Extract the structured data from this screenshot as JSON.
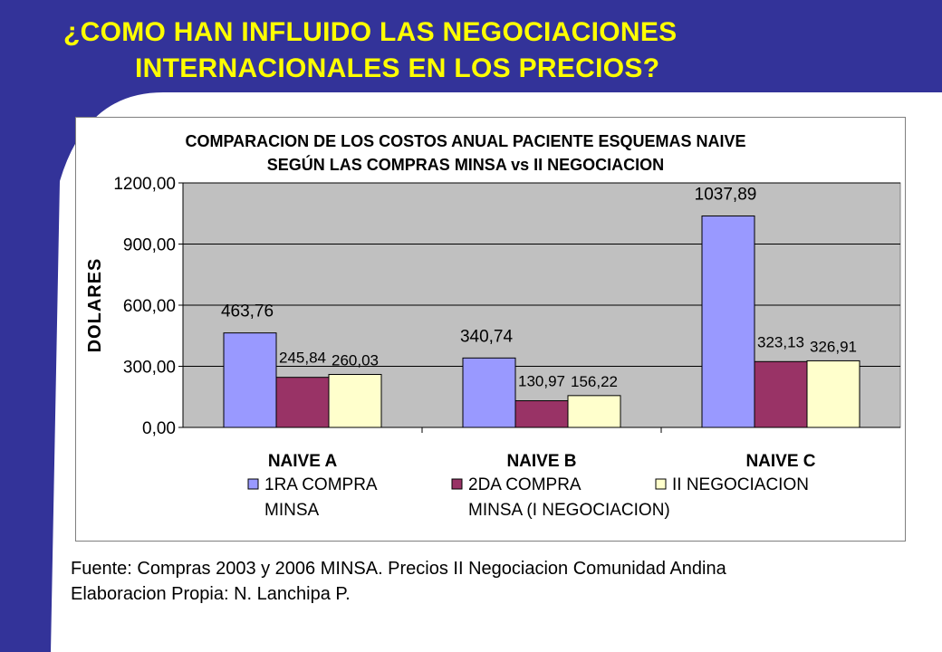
{
  "slide": {
    "title_line1": "¿COMO HAN INFLUIDO LAS NEGOCIACIONES",
    "title_line2": "INTERNACIONALES EN LOS PRECIOS?",
    "colors": {
      "background": "#ffffff",
      "sidebar": "#333399",
      "title": "#ffff00"
    }
  },
  "chart_data": {
    "type": "bar",
    "title_lines": [
      "COMPARACION DE LOS COSTOS ANUAL PACIENTE ESQUEMAS NAIVE",
      "SEGÚN LAS COMPRAS MINSA vs II NEGOCIACION"
    ],
    "ylabel": "DOLARES",
    "xlabel": "",
    "ylim": [
      0,
      1200
    ],
    "yticks": [
      "0,00",
      "300,00",
      "600,00",
      "900,00",
      "1200,00"
    ],
    "ytick_values": [
      0,
      300,
      600,
      900,
      1200
    ],
    "categories": [
      "NAIVE A",
      "NAIVE B",
      "NAIVE C"
    ],
    "series": [
      {
        "name_lines": [
          "1RA COMPRA",
          "MINSA"
        ],
        "color": "#9999ff",
        "values": [
          463.76,
          340.74,
          1037.89
        ],
        "labels": [
          "463,76",
          "340,74",
          "1037,89"
        ]
      },
      {
        "name_lines": [
          "2DA COMPRA",
          "MINSA (I NEGOCIACION)"
        ],
        "color": "#993366",
        "values": [
          245.84,
          130.97,
          323.13
        ],
        "labels": [
          "245,84",
          "130,97",
          "323,13"
        ]
      },
      {
        "name_lines": [
          "II NEGOCIACION",
          ""
        ],
        "color": "#ffffcc",
        "values": [
          260.03,
          156.22,
          326.91
        ],
        "labels": [
          "260,03",
          "156,22",
          "326,91"
        ]
      }
    ],
    "grid": true,
    "plot_background": "#c0c0c0",
    "legend_position": "bottom"
  },
  "footer": {
    "source": "Fuente: Compras 2003 y 2006 MINSA. Precios II Negociacion Comunidad Andina",
    "author": "Elaboracion Propia: N. Lanchipa P."
  }
}
